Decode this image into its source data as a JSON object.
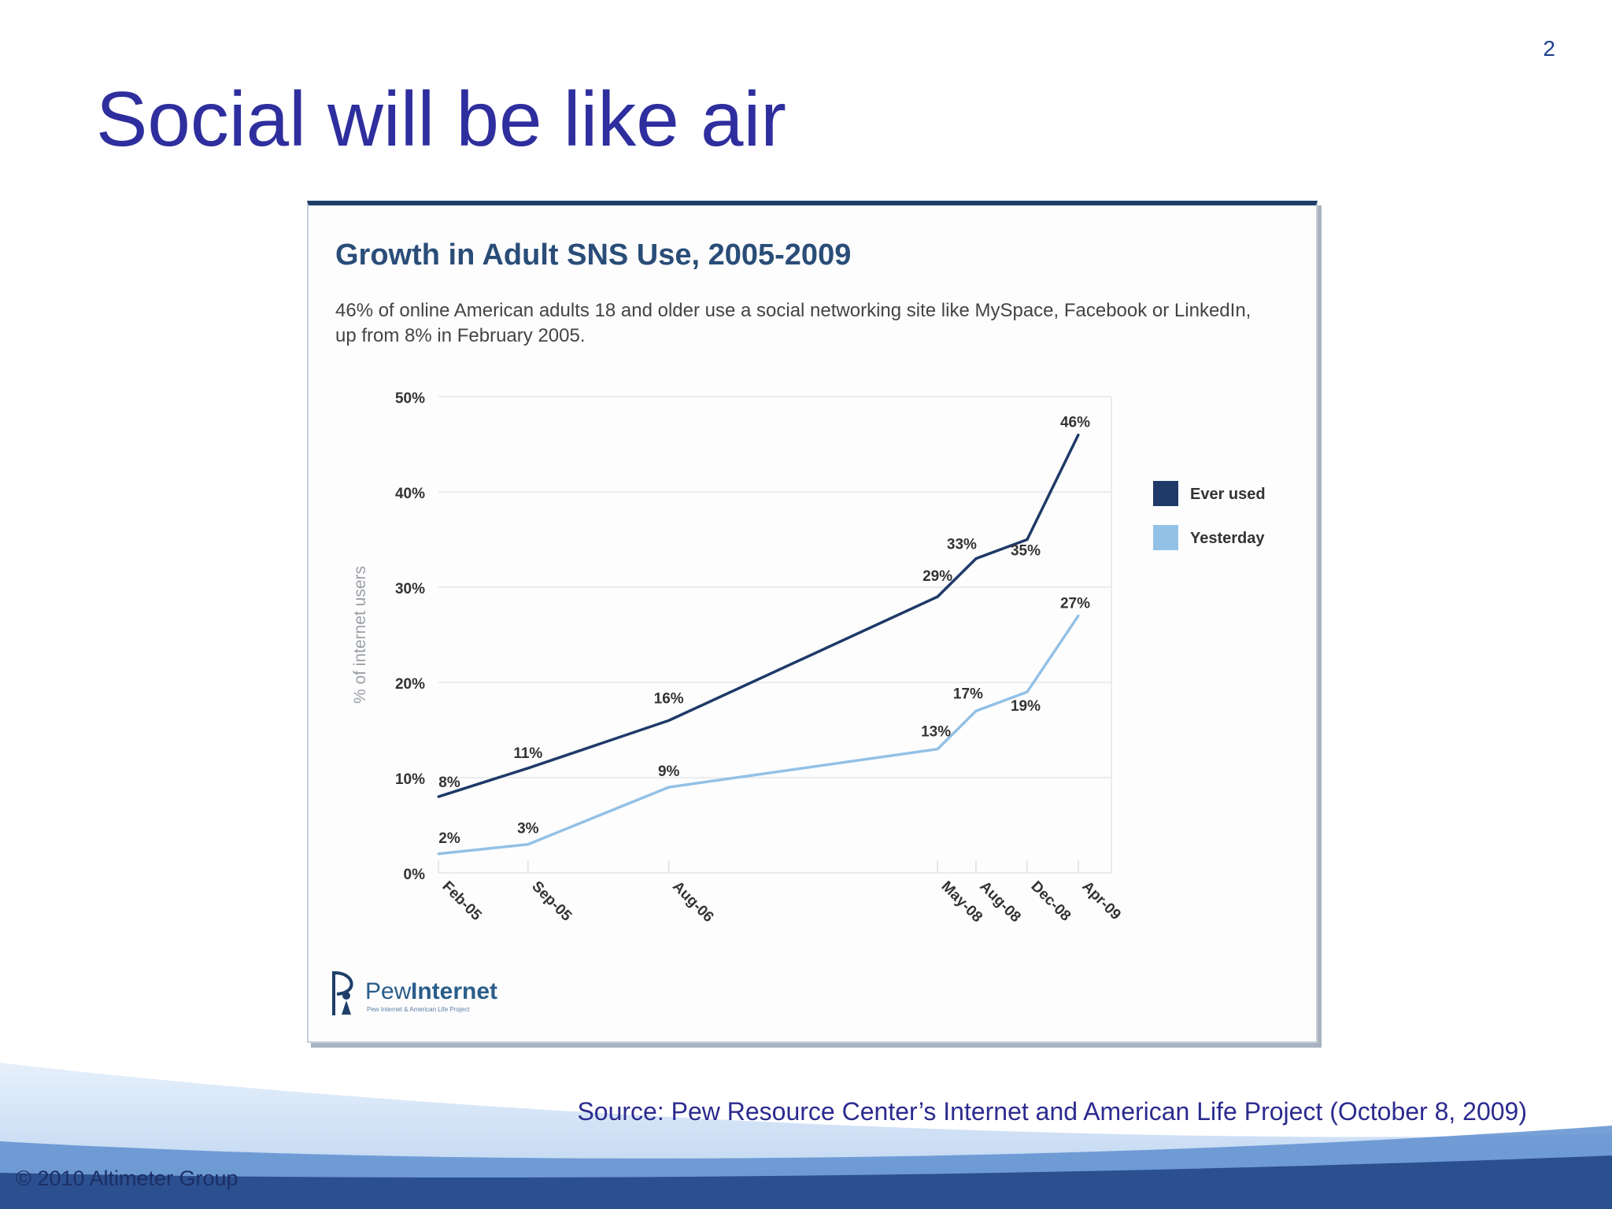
{
  "slide": {
    "page_number": "2",
    "title": "Social will be like air",
    "source": "Source: Pew Resource Center’s Internet and American Life Project (October 8, 2009)",
    "copyright": "© 2010 Altimeter Group"
  },
  "logo": {
    "name": "Pew",
    "name_bold": "Internet",
    "tagline": "Pew Internet & American Life Project"
  },
  "colors": {
    "title": "#2e2e9e",
    "ever_used": "#1f3a68",
    "yesterday": "#93c1e6",
    "chart_title": "#2a4d78"
  },
  "chart_data": {
    "type": "line",
    "title": "Growth in Adult SNS Use, 2005-2009",
    "subtitle": "46% of online American adults 18 and older use a social networking site like MySpace, Facebook or LinkedIn, up from 8% in February 2005.",
    "ylabel": "% of internet users",
    "xlabel": "",
    "ylim": [
      0,
      50
    ],
    "yticks": [
      "0%",
      "10%",
      "20%",
      "30%",
      "40%",
      "50%"
    ],
    "x": [
      "2005-02",
      "2005-09",
      "2006-08",
      "2008-05",
      "2008-08",
      "2008-12",
      "2009-04"
    ],
    "categories": [
      "Feb-05",
      "Sep-05",
      "Aug-06",
      "May-08",
      "Aug-08",
      "Dec-08",
      "Apr-09"
    ],
    "series": [
      {
        "name": "Ever used",
        "values": [
          8,
          11,
          16,
          29,
          33,
          35,
          46
        ],
        "labels": [
          "8%",
          "11%",
          "16%",
          "29%",
          "33%",
          "35%",
          "46%"
        ]
      },
      {
        "name": "Yesterday",
        "values": [
          2,
          3,
          9,
          13,
          17,
          19,
          27
        ],
        "labels": [
          "2%",
          "3%",
          "9%",
          "13%",
          "17%",
          "19%",
          "27%"
        ]
      }
    ],
    "grid": true,
    "legend": "right"
  }
}
